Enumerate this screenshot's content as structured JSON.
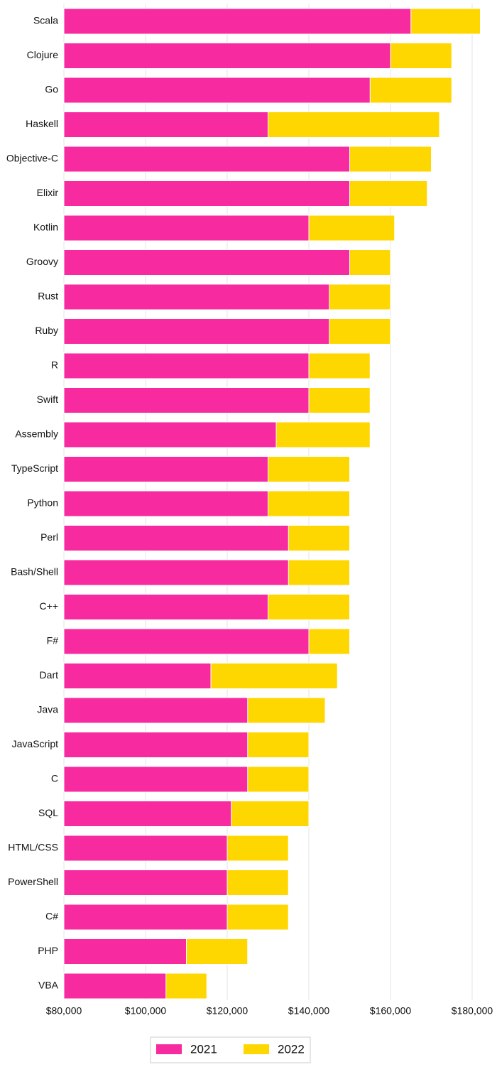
{
  "chart_data": {
    "type": "bar",
    "orientation": "horizontal",
    "categories": [
      "Scala",
      "Clojure",
      "Go",
      "Haskell",
      "Objective-C",
      "Elixir",
      "Kotlin",
      "Groovy",
      "Rust",
      "Ruby",
      "R",
      "Swift",
      "Assembly",
      "TypeScript",
      "Python",
      "Perl",
      "Bash/Shell",
      "C++",
      "F#",
      "Dart",
      "Java",
      "JavaScript",
      "C",
      "SQL",
      "HTML/CSS",
      "PowerShell",
      "C#",
      "PHP",
      "VBA"
    ],
    "series": [
      {
        "name": "2021",
        "color": "#f72a9f",
        "values": [
          165000,
          160000,
          155000,
          130000,
          150000,
          150000,
          140000,
          150000,
          145000,
          145000,
          140000,
          140000,
          132000,
          130000,
          130000,
          135000,
          135000,
          130000,
          140000,
          116000,
          125000,
          125000,
          125000,
          121000,
          120000,
          120000,
          120000,
          110000,
          105000
        ]
      },
      {
        "name": "2022",
        "color": "#ffd700",
        "values": [
          182000,
          175000,
          175000,
          172000,
          170000,
          169000,
          161000,
          160000,
          160000,
          160000,
          155000,
          155000,
          155000,
          150000,
          150000,
          150000,
          150000,
          150000,
          150000,
          147000,
          144000,
          140000,
          140000,
          140000,
          135000,
          135000,
          135000,
          125000,
          115000
        ]
      }
    ],
    "xlim": [
      80000,
      180000
    ],
    "xticks": [
      {
        "value": 80000,
        "label": "$80,000"
      },
      {
        "value": 100000,
        "label": "$100,000"
      },
      {
        "value": 120000,
        "label": "$120,000"
      },
      {
        "value": 140000,
        "label": "$140,000"
      },
      {
        "value": 160000,
        "label": "$160,000"
      },
      {
        "value": 180000,
        "label": "$180,000"
      }
    ],
    "grid": true,
    "legend": "bottom"
  }
}
